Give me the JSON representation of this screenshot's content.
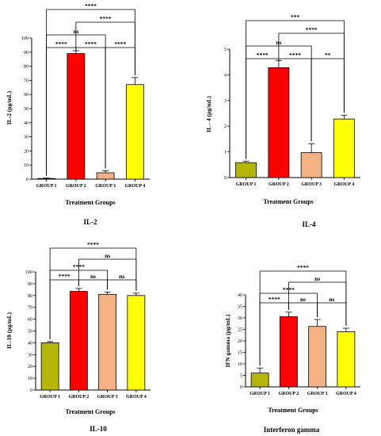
{
  "chart_data": [
    {
      "type": "bar",
      "title": "IL-2",
      "xlabel": "Treatment Groups",
      "ylabel": "IL-2 (pg/mL)",
      "categories": [
        "GROUP 1",
        "GROUP 2",
        "GROUP 3",
        "GROUP 4"
      ],
      "values": [
        0.5,
        89,
        4.5,
        67
      ],
      "errors": [
        0.3,
        2,
        1.5,
        5
      ],
      "colors": [
        "#b5b50a",
        "#ff0000",
        "#f4b183",
        "#ffff00"
      ],
      "ylim": [
        0,
        100
      ],
      "yticks": [
        0,
        10,
        20,
        30,
        40,
        50,
        60,
        70,
        80,
        90,
        100
      ],
      "significance": [
        {
          "a": 1,
          "b": 2,
          "label": "****"
        },
        {
          "a": 2,
          "b": 3,
          "label": "****"
        },
        {
          "a": 3,
          "b": 4,
          "label": "****"
        },
        {
          "a": 1,
          "b": 3,
          "label": "ns"
        },
        {
          "a": 2,
          "b": 4,
          "label": "****"
        },
        {
          "a": 1,
          "b": 4,
          "label": "****"
        }
      ]
    },
    {
      "type": "bar",
      "title": "IL-4",
      "xlabel": "Treatment Groups",
      "ylabel": "IL - 4 (pg/mL)",
      "categories": [
        "GROUP 1",
        "GROUP 2",
        "GROUP 3",
        "GROUP 4"
      ],
      "values": [
        0.58,
        4.28,
        0.97,
        2.28
      ],
      "errors": [
        0.06,
        0.28,
        0.35,
        0.15
      ],
      "colors": [
        "#b5b50a",
        "#ff0000",
        "#f4b183",
        "#ffff00"
      ],
      "ylim": [
        0,
        5
      ],
      "yticks": [
        0,
        1,
        2,
        3,
        4,
        5
      ],
      "significance": [
        {
          "a": 1,
          "b": 2,
          "label": "****"
        },
        {
          "a": 2,
          "b": 3,
          "label": "****"
        },
        {
          "a": 3,
          "b": 4,
          "label": "**"
        },
        {
          "a": 1,
          "b": 3,
          "label": "ns"
        },
        {
          "a": 2,
          "b": 4,
          "label": "****"
        },
        {
          "a": 1,
          "b": 4,
          "label": "***"
        }
      ]
    },
    {
      "type": "bar",
      "title": "IL-10",
      "xlabel": "Treatment Groups",
      "ylabel": "IL-10 (pg/mL)",
      "categories": [
        "GROUP 1",
        "GROUP 2",
        "GROUP 3",
        "GROUP 4"
      ],
      "values": [
        40,
        83.5,
        81,
        80
      ],
      "errors": [
        1,
        2.5,
        2,
        2
      ],
      "colors": [
        "#b5b50a",
        "#ff0000",
        "#f4b183",
        "#ffff00"
      ],
      "ylim": [
        0,
        100
      ],
      "yticks": [
        0,
        10,
        20,
        30,
        40,
        50,
        60,
        70,
        80,
        90,
        100
      ],
      "significance": [
        {
          "a": 1,
          "b": 2,
          "label": "****"
        },
        {
          "a": 2,
          "b": 3,
          "label": "ns"
        },
        {
          "a": 3,
          "b": 4,
          "label": "ns"
        },
        {
          "a": 1,
          "b": 3,
          "label": "****"
        },
        {
          "a": 2,
          "b": 4,
          "label": "ns"
        },
        {
          "a": 1,
          "b": 4,
          "label": "****"
        }
      ]
    },
    {
      "type": "bar",
      "title": "Interferon gamma",
      "xlabel": "Treatment Groups",
      "ylabel": "IFN gamma (pg/mL)",
      "categories": [
        "GROUP 1",
        "GROUP 2",
        "GROUP 3",
        "GROUP 4"
      ],
      "values": [
        6,
        30.5,
        26.3,
        24
      ],
      "errors": [
        2.2,
        2,
        3,
        1.5
      ],
      "colors": [
        "#b5b50a",
        "#ff0000",
        "#f4b183",
        "#ffff00"
      ],
      "ylim": [
        0,
        40
      ],
      "yticks": [
        0,
        5,
        10,
        15,
        20,
        25,
        30,
        35,
        40
      ],
      "significance": [
        {
          "a": 1,
          "b": 2,
          "label": "****"
        },
        {
          "a": 2,
          "b": 3,
          "label": "ns"
        },
        {
          "a": 3,
          "b": 4,
          "label": "ns"
        },
        {
          "a": 1,
          "b": 3,
          "label": "****"
        },
        {
          "a": 2,
          "b": 4,
          "label": "ns"
        },
        {
          "a": 1,
          "b": 4,
          "label": "****"
        }
      ]
    }
  ]
}
